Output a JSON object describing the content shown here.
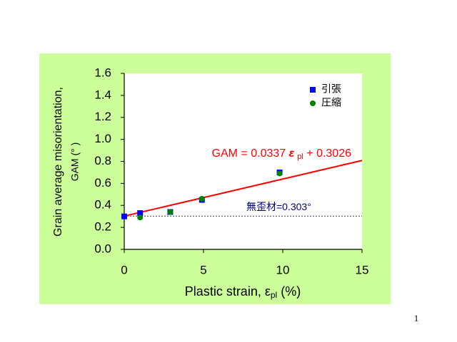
{
  "chart_data": {
    "type": "scatter",
    "ylabel": [
      "Grain average misorientation,",
      "GAM (° )"
    ],
    "xlabel": {
      "text": "Plastic strain, ε",
      "sub": "pl",
      "tail": " (%)"
    },
    "xlim": [
      0,
      15
    ],
    "xticks": [
      0,
      5,
      10,
      15
    ],
    "ylim": [
      0,
      1.6
    ],
    "yticks": [
      {
        "value": 0,
        "label": "0.0"
      },
      0.2,
      0.4,
      0.6,
      0.8,
      {
        "value": 1,
        "label": "1.0"
      },
      1.2,
      1.4,
      1.6
    ],
    "series": [
      {
        "name": "引張",
        "color": "#0000ff",
        "marker": "square",
        "x": [
          0,
          1,
          2.9,
          4.9,
          9.8
        ],
        "values": [
          0.3,
          0.33,
          0.34,
          0.45,
          0.7
        ]
      },
      {
        "name": "圧縮",
        "color": "#008000",
        "marker": "circle",
        "x": [
          1,
          2.9,
          4.9,
          9.8
        ],
        "values": [
          0.29,
          0.34,
          0.46,
          0.69
        ]
      }
    ],
    "fit": {
      "slope": 0.0337,
      "intercept": 0.3026,
      "color": "#ff0000",
      "label": {
        "pre": "GAM = 0.0337 ",
        "symbol": "ε",
        "sub": "pl",
        "post": " + 0.3026"
      }
    },
    "reference": {
      "value": 0.303,
      "label": "無歪材=0.303°"
    },
    "legend": "upper right",
    "page_number": "1"
  }
}
